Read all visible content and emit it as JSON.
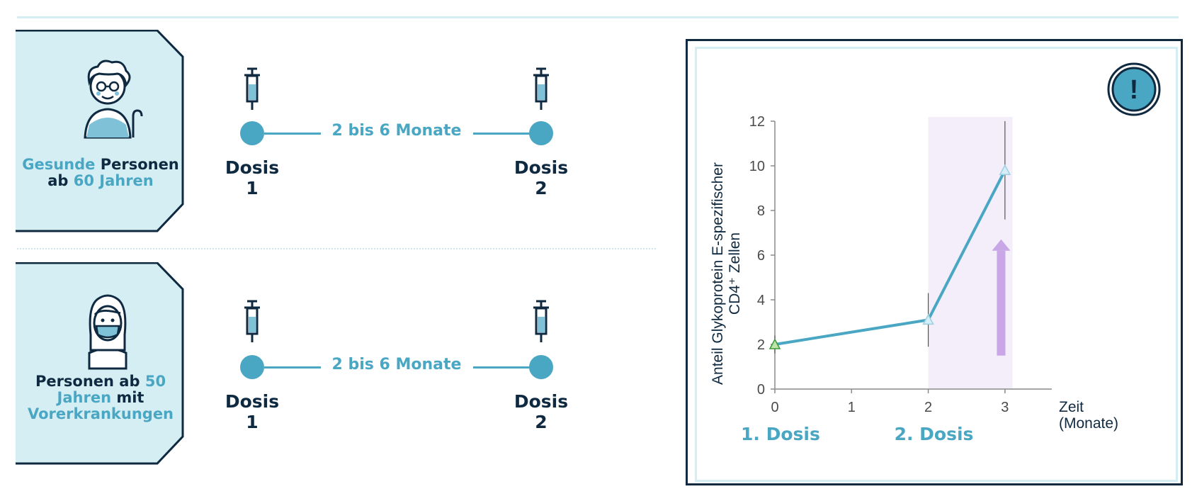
{
  "groups": [
    {
      "caption_parts": [
        {
          "text": "Gesunde",
          "hl": true
        },
        {
          "text": " Personen",
          "hl": false
        },
        {
          "text": "ab ",
          "hl": false,
          "br": true
        },
        {
          "text": "60 Jahren",
          "hl": true
        }
      ],
      "interval": "2 bis 6 Monate",
      "dose1": [
        "Dosis",
        "1"
      ],
      "dose2": [
        "Dosis",
        "2"
      ]
    },
    {
      "caption_parts": [
        {
          "text": "Personen ab ",
          "hl": false
        },
        {
          "text": "50",
          "hl": true
        },
        {
          "text": "Jahren",
          "hl": true,
          "br": true
        },
        {
          "text": " mit",
          "hl": false
        },
        {
          "text": "Vorerkrankungen",
          "hl": true,
          "br": true
        }
      ],
      "interval": "2 bis 6 Monate",
      "dose1": [
        "Dosis",
        "1"
      ],
      "dose2": [
        "Dosis",
        "2"
      ]
    }
  ],
  "colors": {
    "accent": "#4aa7c3",
    "dark": "#0f2a40",
    "card_bg": "#d5eef4",
    "highlight_band": "#f3eefa",
    "arrow": "#c9a6e6"
  },
  "icons": [
    "elderly-person-icon",
    "masked-person-icon",
    "syringe-icon",
    "alert-exclamation-icon",
    "up-arrow-icon"
  ],
  "alert_symbol": "!",
  "chart_data": {
    "type": "line",
    "ylabel_lines": [
      "Anteil Glykoprotein E-spezifischer",
      "CD4⁺ Zellen"
    ],
    "xlabel_lines": [
      "Zeit",
      "(Monate)"
    ],
    "x_ticks": [
      "0",
      "1",
      "2",
      "3"
    ],
    "y_ticks": [
      "0",
      "2",
      "4",
      "6",
      "8",
      "10",
      "12"
    ],
    "xlim": [
      0,
      3.5
    ],
    "ylim": [
      0,
      12
    ],
    "series": [
      {
        "x": [
          0,
          2,
          3
        ],
        "y": [
          2.0,
          3.1,
          9.8
        ],
        "errors": [
          0.4,
          1.2,
          2.2
        ]
      }
    ],
    "highlight_range": [
      2,
      3.1
    ],
    "dose_labels": [
      {
        "x": 0,
        "text": "1. Dosis"
      },
      {
        "x": 2,
        "text": "2. Dosis"
      }
    ]
  }
}
